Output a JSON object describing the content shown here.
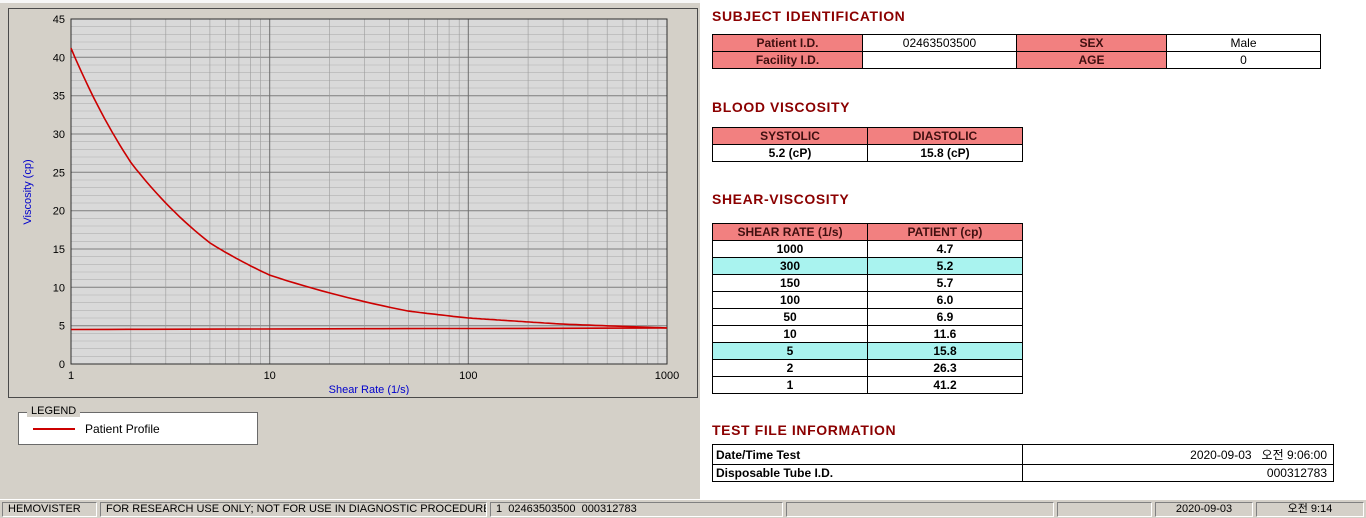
{
  "colors": {
    "window_bg": "#d4d0c8",
    "header_pink": "#f28080",
    "highlight_cyan": "#a9f3ef",
    "section_title_maroon": "#8b0000",
    "series_red": "#cc0000",
    "axis_label_blue": "#0000cc"
  },
  "chart": {
    "legend_title": "LEGEND",
    "legend_items": [
      {
        "label": "Patient Profile",
        "color": "#cc0000"
      }
    ]
  },
  "chart_data": {
    "type": "line",
    "title": "",
    "xlabel": "Shear Rate (1/s)",
    "ylabel": "Viscosity (cp)",
    "x_scale": "log",
    "xlim": [
      1,
      1000
    ],
    "ylim": [
      0,
      45
    ],
    "x_ticks": [
      1,
      10,
      100,
      1000
    ],
    "y_ticks": [
      0,
      5,
      10,
      15,
      20,
      25,
      30,
      35,
      40,
      45
    ],
    "grid": true,
    "legend_position": "bottom-left-external",
    "series": [
      {
        "name": "Patient Profile",
        "color": "#cc0000",
        "x": [
          1,
          2,
          5,
          10,
          50,
          100,
          150,
          300,
          1000
        ],
        "y": [
          41.2,
          26.3,
          15.8,
          11.6,
          6.9,
          6.0,
          5.7,
          5.2,
          4.7
        ]
      },
      {
        "name": "Newtonian reference line",
        "color": "#cc0000",
        "x": [
          1,
          1000
        ],
        "y": [
          4.5,
          4.7
        ]
      }
    ]
  },
  "subject_identification": {
    "title": "SUBJECT IDENTIFICATION",
    "fields": {
      "patient_id_label": "Patient I.D.",
      "patient_id": "02463503500",
      "sex_label": "SEX",
      "sex": "Male",
      "facility_id_label": "Facility I.D.",
      "facility_id": "",
      "age_label": "AGE",
      "age": "0"
    }
  },
  "blood_viscosity": {
    "title": "BLOOD VISCOSITY",
    "systolic_label": "SYSTOLIC",
    "diastolic_label": "DIASTOLIC",
    "systolic_value": "5.2 (cP)",
    "diastolic_value": "15.8 (cP)"
  },
  "shear_viscosity": {
    "title": "SHEAR-VISCOSITY",
    "col_shear": "SHEAR RATE (1/s)",
    "col_patient": "PATIENT (cp)",
    "rows": [
      {
        "rate": "1000",
        "value": "4.7",
        "highlight": false
      },
      {
        "rate": "300",
        "value": "5.2",
        "highlight": true
      },
      {
        "rate": "150",
        "value": "5.7",
        "highlight": false
      },
      {
        "rate": "100",
        "value": "6.0",
        "highlight": false
      },
      {
        "rate": "50",
        "value": "6.9",
        "highlight": false
      },
      {
        "rate": "10",
        "value": "11.6",
        "highlight": false
      },
      {
        "rate": "5",
        "value": "15.8",
        "highlight": true
      },
      {
        "rate": "2",
        "value": "26.3",
        "highlight": false
      },
      {
        "rate": "1",
        "value": "41.2",
        "highlight": false
      }
    ]
  },
  "test_file_information": {
    "title": "TEST FILE INFORMATION",
    "date_label": "Date/Time Test",
    "date_value": "2020-09-03   오전 9:06:00",
    "tube_label": "Disposable Tube I.D.",
    "tube_value": "000312783"
  },
  "status_bar": {
    "app_name": "HEMOVISTER",
    "notice": "FOR RESEARCH USE ONLY; NOT FOR USE IN DIAGNOSTIC PROCEDURES",
    "record_info": "1  02463503500  000312783",
    "date": "2020-09-03",
    "time": "오전 9:14"
  }
}
